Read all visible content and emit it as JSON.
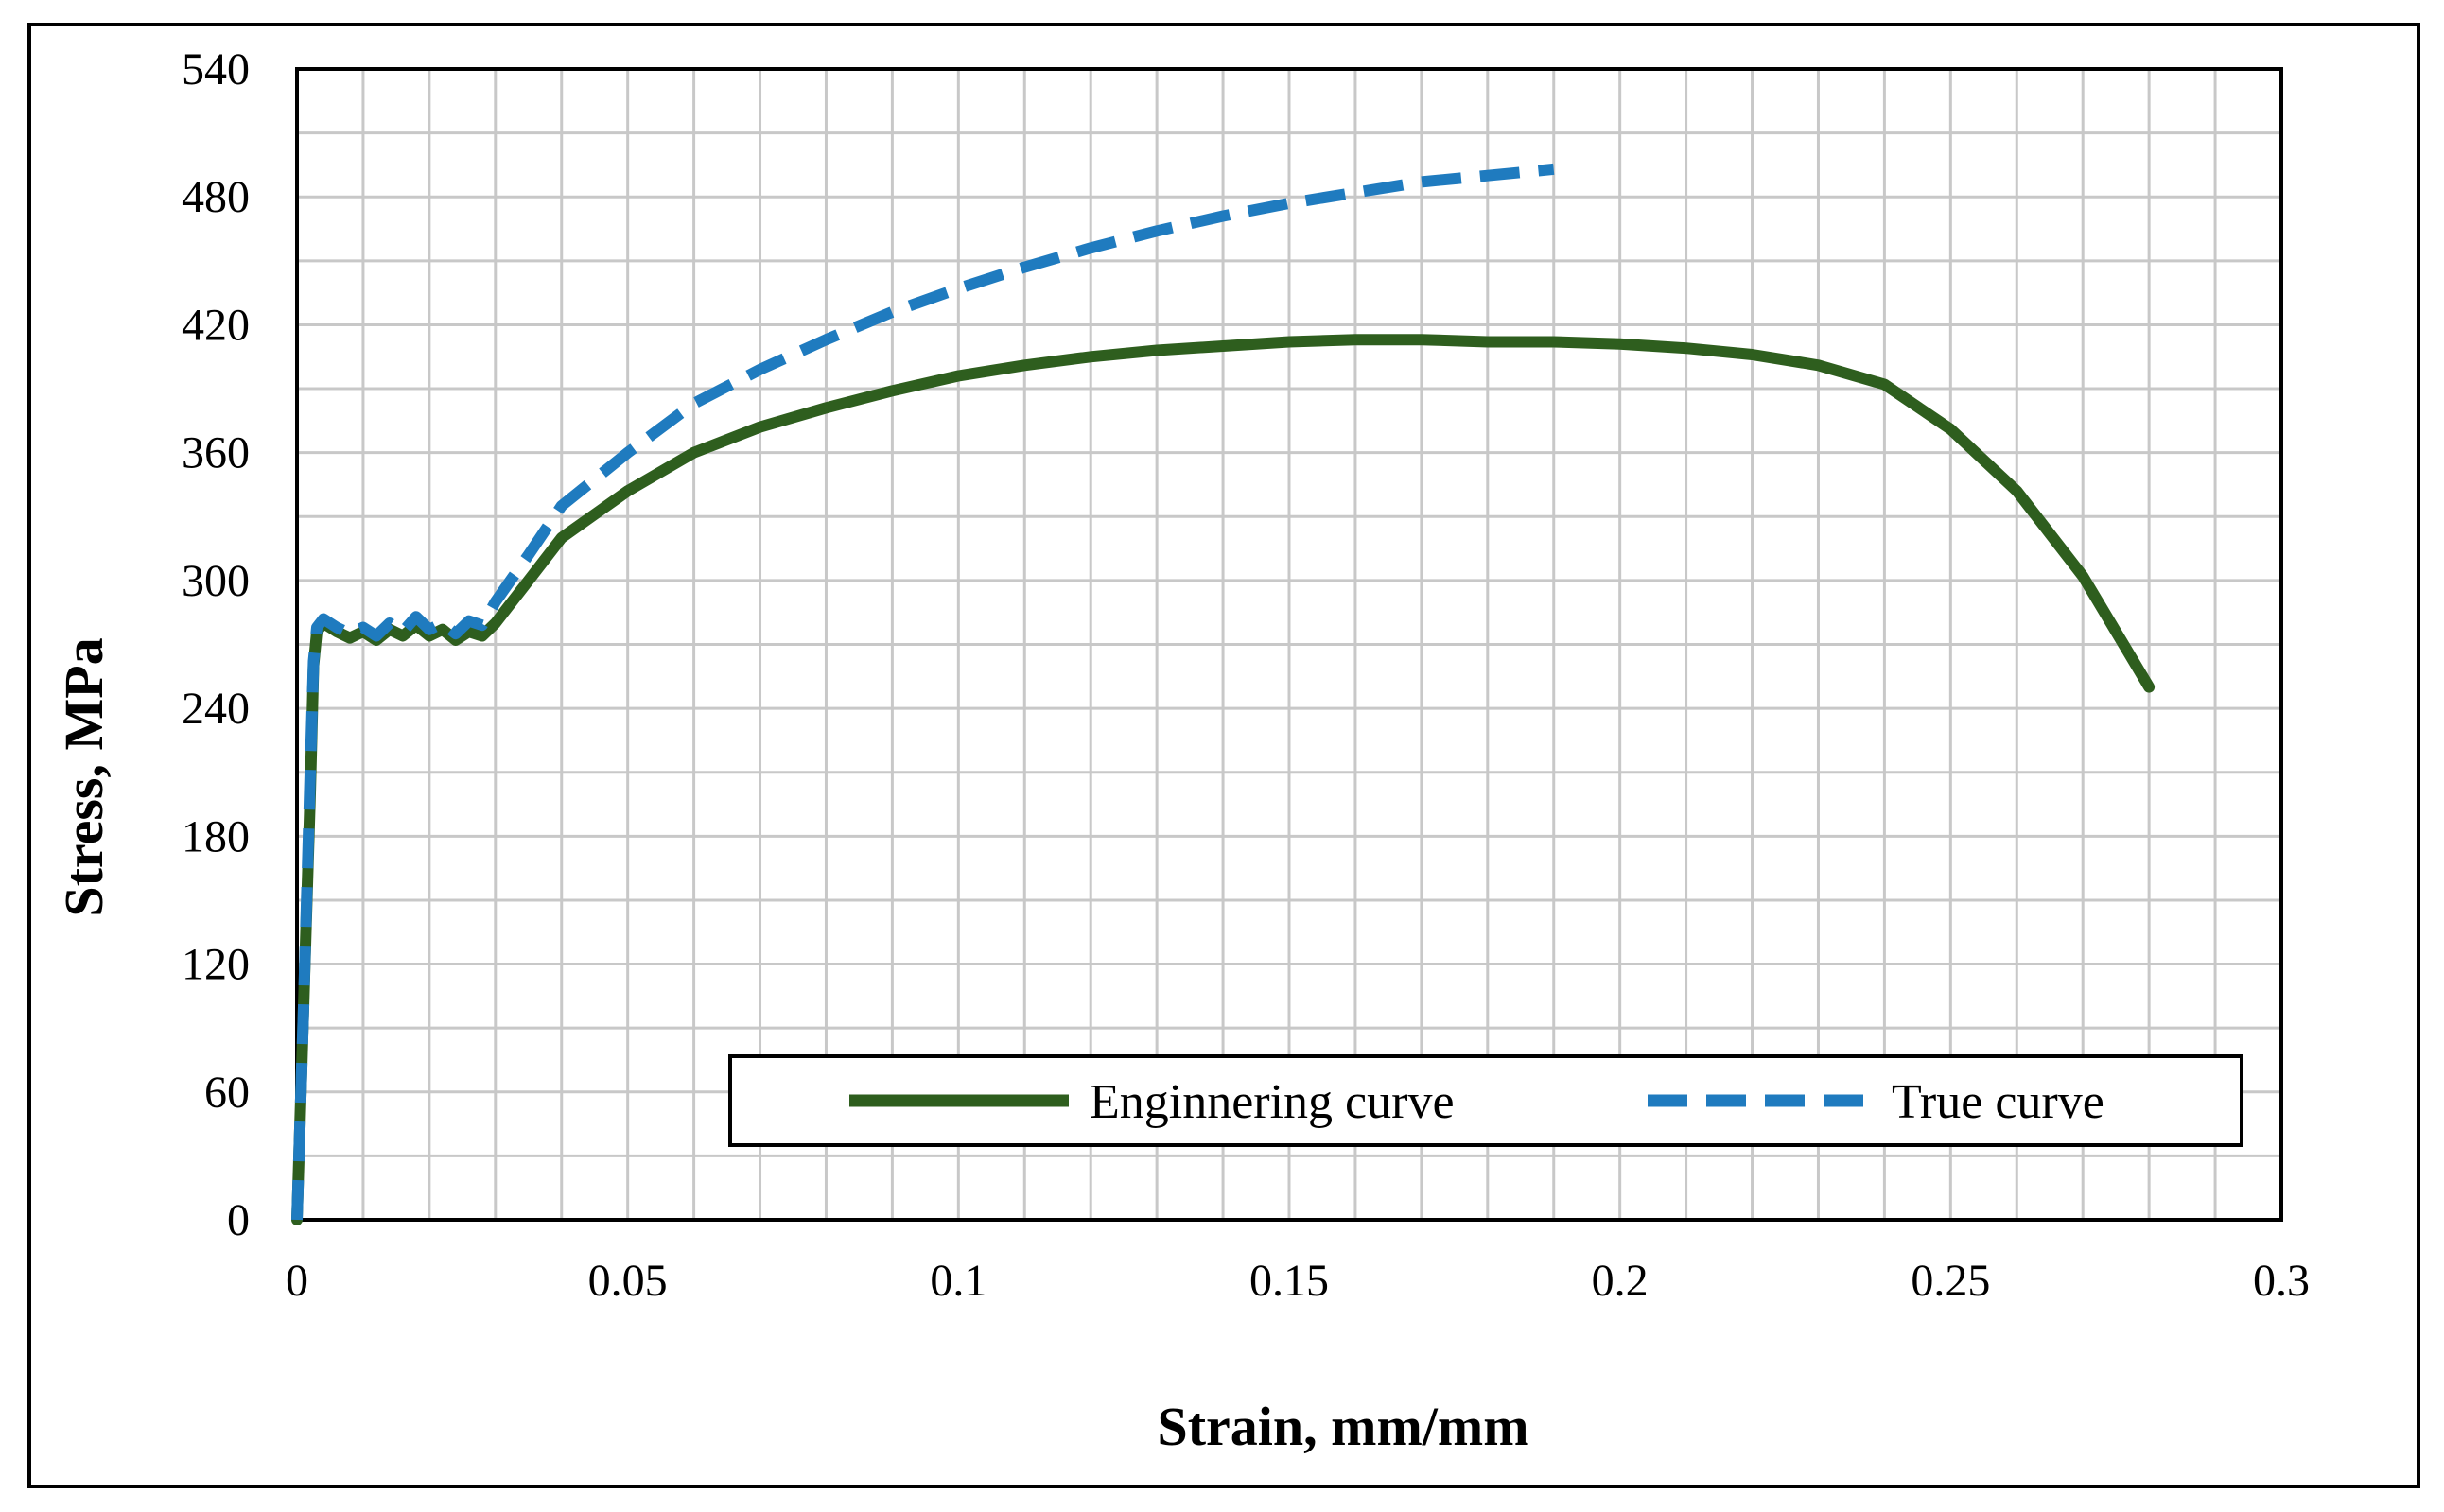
{
  "chart_data": {
    "type": "line",
    "xlabel": "Strain, mm/mm",
    "ylabel": "Stress, MPa",
    "xlim": [
      0,
      0.3
    ],
    "ylim": [
      0,
      540
    ],
    "x_ticks": [
      "0",
      "0.05",
      "0.1",
      "0.15",
      "0.2",
      "0.25",
      "0.3"
    ],
    "y_ticks": [
      "0",
      "60",
      "120",
      "180",
      "240",
      "300",
      "360",
      "420",
      "480",
      "540"
    ],
    "x_minor_step": 0.01,
    "y_minor_step": 30,
    "grid": true,
    "legend_position": "bottom-right, inside plot area",
    "series": [
      {
        "name": "Enginnering curve",
        "color": "#2e5e1e",
        "style": "solid",
        "points": [
          [
            0,
            0
          ],
          [
            0.001,
            100
          ],
          [
            0.002,
            200
          ],
          [
            0.0025,
            260
          ],
          [
            0.003,
            276
          ],
          [
            0.004,
            280
          ],
          [
            0.006,
            276
          ],
          [
            0.008,
            273
          ],
          [
            0.01,
            276
          ],
          [
            0.012,
            272
          ],
          [
            0.014,
            277
          ],
          [
            0.016,
            274
          ],
          [
            0.018,
            279
          ],
          [
            0.02,
            274
          ],
          [
            0.022,
            277
          ],
          [
            0.024,
            272
          ],
          [
            0.026,
            276
          ],
          [
            0.028,
            274
          ],
          [
            0.03,
            280
          ],
          [
            0.035,
            300
          ],
          [
            0.04,
            320
          ],
          [
            0.05,
            342
          ],
          [
            0.06,
            360
          ],
          [
            0.07,
            372
          ],
          [
            0.08,
            381
          ],
          [
            0.09,
            389
          ],
          [
            0.1,
            396
          ],
          [
            0.11,
            401
          ],
          [
            0.12,
            405
          ],
          [
            0.13,
            408
          ],
          [
            0.14,
            410
          ],
          [
            0.15,
            412
          ],
          [
            0.16,
            413
          ],
          [
            0.17,
            413
          ],
          [
            0.18,
            412
          ],
          [
            0.19,
            412
          ],
          [
            0.2,
            411
          ],
          [
            0.21,
            409
          ],
          [
            0.22,
            406
          ],
          [
            0.23,
            401
          ],
          [
            0.24,
            392
          ],
          [
            0.25,
            371
          ],
          [
            0.26,
            342
          ],
          [
            0.27,
            302
          ],
          [
            0.28,
            250
          ]
        ]
      },
      {
        "name": "True curve",
        "color": "#1f7bbf",
        "style": "dashed",
        "points": [
          [
            0,
            0
          ],
          [
            0.001,
            100
          ],
          [
            0.002,
            210
          ],
          [
            0.0025,
            262
          ],
          [
            0.003,
            278
          ],
          [
            0.004,
            282
          ],
          [
            0.006,
            278
          ],
          [
            0.008,
            275
          ],
          [
            0.01,
            278
          ],
          [
            0.012,
            274
          ],
          [
            0.014,
            280
          ],
          [
            0.016,
            276
          ],
          [
            0.018,
            283
          ],
          [
            0.02,
            277
          ],
          [
            0.022,
            280
          ],
          [
            0.024,
            275
          ],
          [
            0.026,
            281
          ],
          [
            0.028,
            279
          ],
          [
            0.03,
            290
          ],
          [
            0.035,
            312
          ],
          [
            0.04,
            335
          ],
          [
            0.05,
            360
          ],
          [
            0.06,
            383
          ],
          [
            0.07,
            399
          ],
          [
            0.08,
            413
          ],
          [
            0.09,
            426
          ],
          [
            0.1,
            437
          ],
          [
            0.11,
            447
          ],
          [
            0.12,
            456
          ],
          [
            0.13,
            464
          ],
          [
            0.14,
            471
          ],
          [
            0.15,
            477
          ],
          [
            0.16,
            482
          ],
          [
            0.17,
            487
          ],
          [
            0.18,
            490
          ],
          [
            0.19,
            493
          ]
        ]
      }
    ]
  }
}
